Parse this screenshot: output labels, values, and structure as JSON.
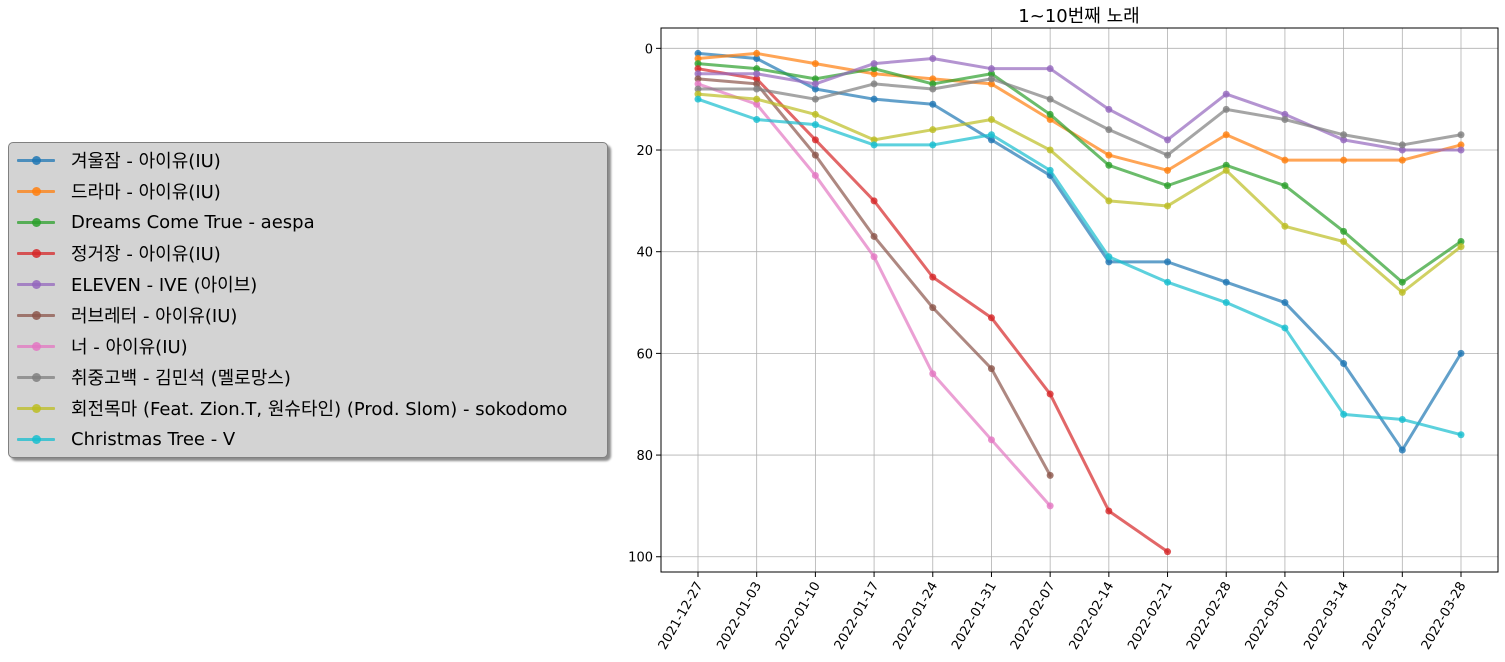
{
  "chart_data": {
    "type": "line",
    "title": "1~10번째 노래",
    "xlabel": "",
    "ylabel": "",
    "x": [
      "2021-12-27",
      "2022-01-03",
      "2022-01-10",
      "2022-01-17",
      "2022-01-24",
      "2022-01-31",
      "2022-02-07",
      "2022-02-14",
      "2022-02-21",
      "2022-02-28",
      "2022-03-07",
      "2022-03-14",
      "2022-03-21",
      "2022-03-28"
    ],
    "ylim": [
      103,
      -4
    ],
    "y_inverted": true,
    "yticks": [
      0,
      20,
      40,
      60,
      80,
      100
    ],
    "grid": true,
    "legend_position": "outside-left",
    "series": [
      {
        "name": "겨울잠 - 아이유(IU)",
        "color": "#1f77b4",
        "values": [
          1,
          2,
          8,
          10,
          11,
          18,
          25,
          42,
          42,
          46,
          50,
          62,
          79,
          60
        ]
      },
      {
        "name": "드라마 - 아이유(IU)",
        "color": "#ff7f0e",
        "values": [
          2,
          1,
          3,
          5,
          6,
          7,
          14,
          21,
          24,
          17,
          22,
          22,
          22,
          19
        ]
      },
      {
        "name": "Dreams Come True - aespa",
        "color": "#2ca02c",
        "values": [
          3,
          4,
          6,
          4,
          7,
          5,
          13,
          23,
          27,
          23,
          27,
          36,
          46,
          38
        ]
      },
      {
        "name": "정거장 - 아이유(IU)",
        "color": "#d62728",
        "values": [
          4,
          6,
          18,
          30,
          45,
          53,
          68,
          91,
          99,
          null,
          null,
          null,
          null,
          null
        ]
      },
      {
        "name": "ELEVEN - IVE (아이브)",
        "color": "#9467bd",
        "values": [
          5,
          5,
          7,
          3,
          2,
          4,
          4,
          12,
          18,
          9,
          13,
          18,
          20,
          20
        ]
      },
      {
        "name": "러브레터 - 아이유(IU)",
        "color": "#8c564b",
        "values": [
          6,
          7,
          21,
          37,
          51,
          63,
          84,
          null,
          null,
          null,
          null,
          null,
          null,
          null
        ]
      },
      {
        "name": "너 - 아이유(IU)",
        "color": "#e377c2",
        "values": [
          7,
          11,
          25,
          41,
          64,
          77,
          90,
          null,
          null,
          null,
          null,
          null,
          null,
          null
        ]
      },
      {
        "name": "취중고백 - 김민석 (멜로망스)",
        "color": "#7f7f7f",
        "values": [
          8,
          8,
          10,
          7,
          8,
          6,
          10,
          16,
          21,
          12,
          14,
          17,
          19,
          17
        ]
      },
      {
        "name": "회전목마 (Feat. Zion.T, 원슈타인) (Prod. Slom) - sokodomo",
        "color": "#bcbd22",
        "values": [
          9,
          10,
          13,
          18,
          16,
          14,
          20,
          30,
          31,
          24,
          35,
          38,
          48,
          39
        ]
      },
      {
        "name": "Christmas Tree - V",
        "color": "#17becf",
        "values": [
          10,
          14,
          15,
          19,
          19,
          17,
          24,
          41,
          46,
          50,
          55,
          72,
          73,
          76
        ]
      }
    ]
  }
}
